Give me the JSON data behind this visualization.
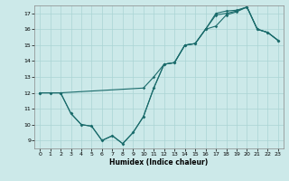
{
  "xlabel": "Humidex (Indice chaleur)",
  "xlim": [
    -0.5,
    23.5
  ],
  "ylim": [
    8.5,
    17.5
  ],
  "xticks": [
    0,
    1,
    2,
    3,
    4,
    5,
    6,
    7,
    8,
    9,
    10,
    11,
    12,
    13,
    14,
    15,
    16,
    17,
    18,
    19,
    20,
    21,
    22,
    23
  ],
  "yticks": [
    9,
    10,
    11,
    12,
    13,
    14,
    15,
    16,
    17
  ],
  "bg_color": "#cce9e9",
  "grid_color": "#aad4d4",
  "line_color": "#1a6b6b",
  "line1_x": [
    0,
    1,
    2,
    3,
    4,
    5,
    6,
    7,
    8,
    9,
    10,
    11,
    12,
    13,
    14,
    15,
    16,
    17,
    18,
    19,
    20,
    21,
    22,
    23
  ],
  "line1_y": [
    12,
    12,
    12,
    10.7,
    10.0,
    9.9,
    9.0,
    9.3,
    8.8,
    9.5,
    10.5,
    12.3,
    13.8,
    13.9,
    15.0,
    15.1,
    16.0,
    16.2,
    16.9,
    17.1,
    17.4,
    16.0,
    15.8,
    15.3
  ],
  "line2_x": [
    0,
    1,
    2,
    3,
    4,
    5,
    6,
    7,
    8,
    9,
    10,
    11,
    12,
    13,
    14,
    15,
    16,
    17,
    18,
    19,
    20,
    21,
    22,
    23
  ],
  "line2_y": [
    12,
    12,
    12,
    10.7,
    10.0,
    9.9,
    9.0,
    9.3,
    8.8,
    9.5,
    10.5,
    12.3,
    13.8,
    13.9,
    15.0,
    15.1,
    16.0,
    17.0,
    17.15,
    17.2,
    17.4,
    16.0,
    15.8,
    15.3
  ],
  "line3_x": [
    0,
    2,
    10,
    11,
    12,
    13,
    14,
    15,
    16,
    17,
    18,
    19,
    20,
    21,
    22,
    23
  ],
  "line3_y": [
    12,
    12,
    12.3,
    13.0,
    13.8,
    13.9,
    15.0,
    15.1,
    16.0,
    16.9,
    17.0,
    17.15,
    17.4,
    16.0,
    15.8,
    15.3
  ]
}
